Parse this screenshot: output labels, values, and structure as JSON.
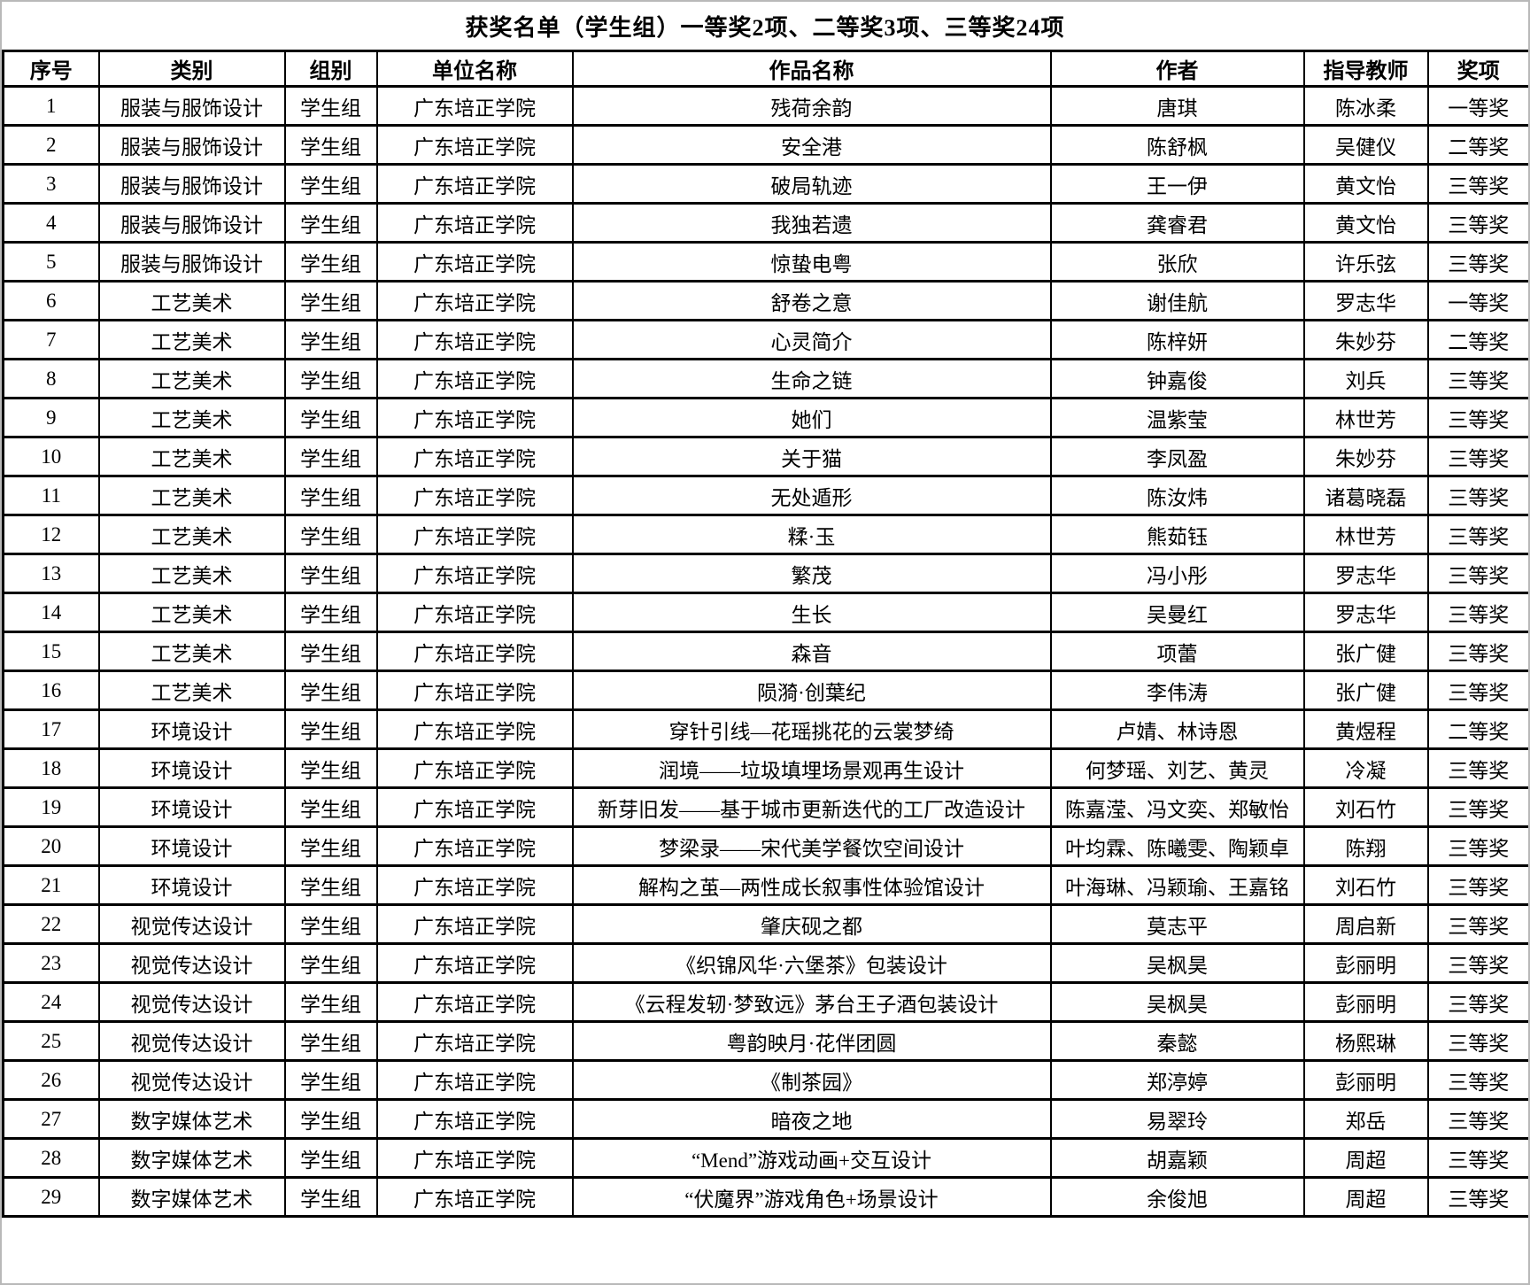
{
  "title": "获奖名单（学生组）一等奖2项、二等奖3项、三等奖24项",
  "table": {
    "headers": [
      "序号",
      "类别",
      "组别",
      "单位名称",
      "作品名称",
      "作者",
      "指导教师",
      "奖项"
    ],
    "rows": [
      [
        "1",
        "服装与服饰设计",
        "学生组",
        "广东培正学院",
        "残荷余韵",
        "唐琪",
        "陈冰柔",
        "一等奖"
      ],
      [
        "2",
        "服装与服饰设计",
        "学生组",
        "广东培正学院",
        "安全港",
        "陈舒枫",
        "吴健仪",
        "二等奖"
      ],
      [
        "3",
        "服装与服饰设计",
        "学生组",
        "广东培正学院",
        "破局轨迹",
        "王一伊",
        "黄文怡",
        "三等奖"
      ],
      [
        "4",
        "服装与服饰设计",
        "学生组",
        "广东培正学院",
        "我独若遗",
        "龚睿君",
        "黄文怡",
        "三等奖"
      ],
      [
        "5",
        "服装与服饰设计",
        "学生组",
        "广东培正学院",
        "惊蛰电粤",
        "张欣",
        "许乐弦",
        "三等奖"
      ],
      [
        "6",
        "工艺美术",
        "学生组",
        "广东培正学院",
        "舒卷之意",
        "谢佳航",
        "罗志华",
        "一等奖"
      ],
      [
        "7",
        "工艺美术",
        "学生组",
        "广东培正学院",
        "心灵简介",
        "陈梓妍",
        "朱妙芬",
        "二等奖"
      ],
      [
        "8",
        "工艺美术",
        "学生组",
        "广东培正学院",
        "生命之链",
        "钟嘉俊",
        "刘兵",
        "三等奖"
      ],
      [
        "9",
        "工艺美术",
        "学生组",
        "广东培正学院",
        "她们",
        "温紫莹",
        "林世芳",
        "三等奖"
      ],
      [
        "10",
        "工艺美术",
        "学生组",
        "广东培正学院",
        "关于猫",
        "李凤盈",
        "朱妙芬",
        "三等奖"
      ],
      [
        "11",
        "工艺美术",
        "学生组",
        "广东培正学院",
        "无处遁形",
        "陈汝炜",
        "诸葛晓磊",
        "三等奖"
      ],
      [
        "12",
        "工艺美术",
        "学生组",
        "广东培正学院",
        "糅·玉",
        "熊茹钰",
        "林世芳",
        "三等奖"
      ],
      [
        "13",
        "工艺美术",
        "学生组",
        "广东培正学院",
        "繁茂",
        "冯小彤",
        "罗志华",
        "三等奖"
      ],
      [
        "14",
        "工艺美术",
        "学生组",
        "广东培正学院",
        "生长",
        "吴曼红",
        "罗志华",
        "三等奖"
      ],
      [
        "15",
        "工艺美术",
        "学生组",
        "广东培正学院",
        "森音",
        "项蕾",
        "张广健",
        "三等奖"
      ],
      [
        "16",
        "工艺美术",
        "学生组",
        "广东培正学院",
        "陨漪·创葉纪",
        "李伟涛",
        "张广健",
        "三等奖"
      ],
      [
        "17",
        "环境设计",
        "学生组",
        "广东培正学院",
        "穿针引线—花瑶挑花的云裳梦绮",
        "卢婧、林诗恩",
        "黄煜程",
        "二等奖"
      ],
      [
        "18",
        "环境设计",
        "学生组",
        "广东培正学院",
        "润境——垃圾填埋场景观再生设计",
        "何梦瑶、刘艺、黄灵",
        "冷凝",
        "三等奖"
      ],
      [
        "19",
        "环境设计",
        "学生组",
        "广东培正学院",
        "新芽旧发——基于城市更新迭代的工厂改造设计",
        "陈嘉滢、冯文奕、郑敏怡",
        "刘石竹",
        "三等奖"
      ],
      [
        "20",
        "环境设计",
        "学生组",
        "广东培正学院",
        "梦梁录——宋代美学餐饮空间设计",
        "叶均霖、陈曦雯、陶颖卓",
        "陈翔",
        "三等奖"
      ],
      [
        "21",
        "环境设计",
        "学生组",
        "广东培正学院",
        "解构之茧—两性成长叙事性体验馆设计",
        "叶海琳、冯颖瑜、王嘉铭",
        "刘石竹",
        "三等奖"
      ],
      [
        "22",
        "视觉传达设计",
        "学生组",
        "广东培正学院",
        "肇庆砚之都",
        "莫志平",
        "周启新",
        "三等奖"
      ],
      [
        "23",
        "视觉传达设计",
        "学生组",
        "广东培正学院",
        "《织锦风华·六堡茶》包装设计",
        "吴枫昊",
        "彭丽明",
        "三等奖"
      ],
      [
        "24",
        "视觉传达设计",
        "学生组",
        "广东培正学院",
        "《云程发轫·梦致远》茅台王子酒包装设计",
        "吴枫昊",
        "彭丽明",
        "三等奖"
      ],
      [
        "25",
        "视觉传达设计",
        "学生组",
        "广东培正学院",
        "粤韵映月·花伴团圆",
        "秦懿",
        "杨熙琳",
        "三等奖"
      ],
      [
        "26",
        "视觉传达设计",
        "学生组",
        "广东培正学院",
        "《制茶园》",
        "郑渟婷",
        "彭丽明",
        "三等奖"
      ],
      [
        "27",
        "数字媒体艺术",
        "学生组",
        "广东培正学院",
        "暗夜之地",
        "易翠玲",
        "郑岳",
        "三等奖"
      ],
      [
        "28",
        "数字媒体艺术",
        "学生组",
        "广东培正学院",
        "“Mend”游戏动画+交互设计",
        "胡嘉颖",
        "周超",
        "三等奖"
      ],
      [
        "29",
        "数字媒体艺术",
        "学生组",
        "广东培正学院",
        "“伏魔界”游戏角色+场景设计",
        "余俊旭",
        "周超",
        "三等奖"
      ]
    ]
  }
}
